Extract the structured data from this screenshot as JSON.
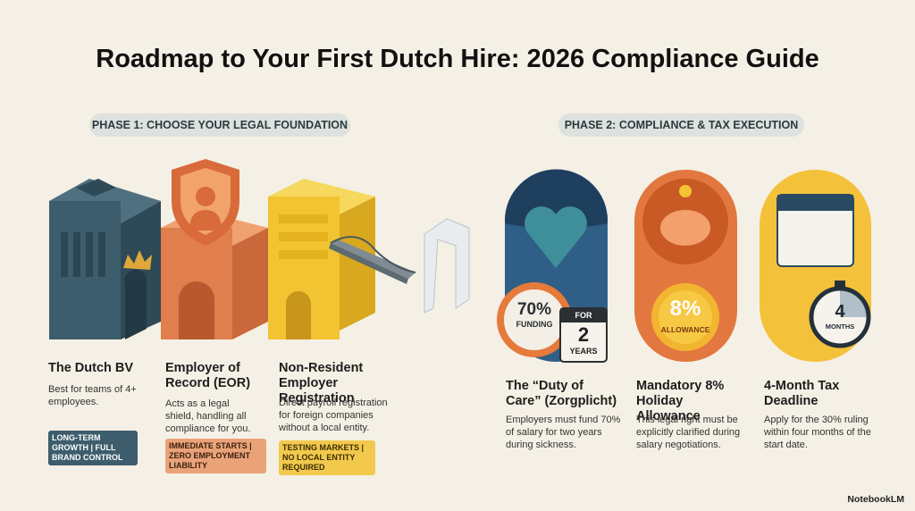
{
  "header": {
    "title": "Roadmap to Your First Dutch Hire: 2026 Compliance Guide"
  },
  "phase1": {
    "label": "PHASE 1: CHOOSE YOUR LEGAL FOUNDATION",
    "options": [
      {
        "title": "The Dutch BV",
        "description": "Best for teams of 4+ employees.",
        "tag": "LONG-TERM GROWTH | FULL BRAND CONTROL"
      },
      {
        "title": "Employer of Record (EOR)",
        "description": "Acts as a legal shield, handling all compliance for you.",
        "tag": "IMMEDIATE STARTS | ZERO EMPLOYMENT LIABILITY"
      },
      {
        "title": "Non-Resident Employer Registration",
        "description": "Direct payroll registration for foreign companies without a local entity.",
        "tag": "TESTING MARKETS | NO LOCAL ENTITY REQUIRED"
      }
    ]
  },
  "phase2": {
    "label": "PHASE 2: COMPLIANCE & TAX EXECUTION",
    "items": [
      {
        "title": "The “Duty of Care” (Zorgplicht)",
        "description": "Employers must fund 70% of salary for two years during sickness.",
        "badge": "70%",
        "badge_caption": "FUNDING",
        "calendar_top": "FOR",
        "calendar_number": "2",
        "calendar_bottom": "YEARS"
      },
      {
        "title": "Mandatory 8% Holiday Allowance",
        "description": "This legal right must be explicitly clarified during salary negotiations.",
        "badge": "8%",
        "badge_caption": "ALLOWANCE"
      },
      {
        "title": "4-Month Tax Deadline",
        "description": "Apply for the 30% ruling within four months of the start date.",
        "badge": "4",
        "badge_caption": "MONTHS"
      }
    ]
  },
  "footer": {
    "brand": "NotebookLM"
  }
}
